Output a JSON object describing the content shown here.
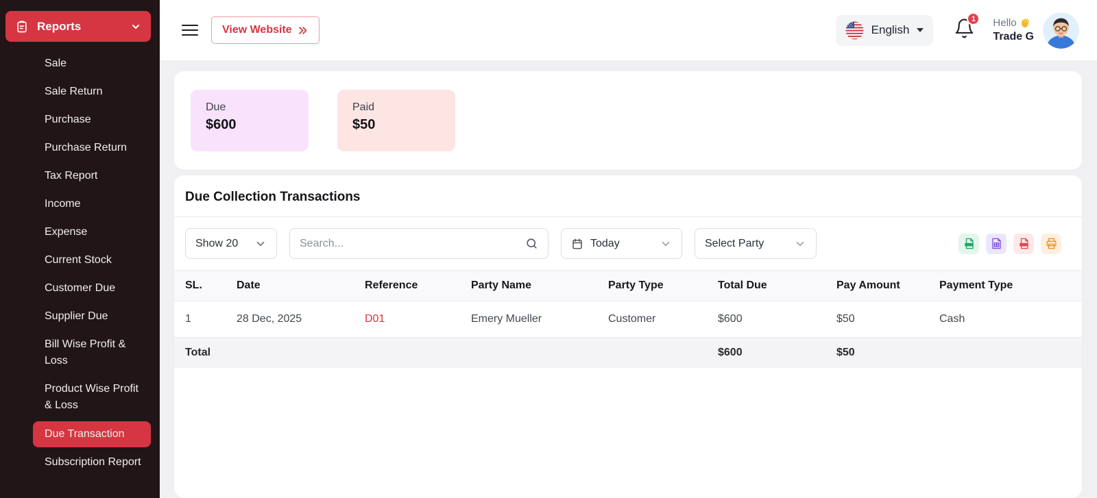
{
  "colors": {
    "accent_red": "#d63542",
    "sidebar_bg": "#211518",
    "due_card_bg": "#f8e2fc",
    "paid_card_bg": "#fde5e4"
  },
  "sidebar": {
    "header": {
      "label": "Reports",
      "icon": "clipboard-icon",
      "state_icon": "chevron-down-icon"
    },
    "items": [
      {
        "label": "Sale",
        "active": false
      },
      {
        "label": "Sale Return",
        "active": false
      },
      {
        "label": "Purchase",
        "active": false
      },
      {
        "label": "Purchase Return",
        "active": false
      },
      {
        "label": "Tax Report",
        "active": false
      },
      {
        "label": "Income",
        "active": false
      },
      {
        "label": "Expense",
        "active": false
      },
      {
        "label": "Current Stock",
        "active": false
      },
      {
        "label": "Customer Due",
        "active": false
      },
      {
        "label": "Supplier Due",
        "active": false
      },
      {
        "label": "Bill Wise Profit & Loss",
        "active": false
      },
      {
        "label": "Product Wise Profit & Loss",
        "active": false
      },
      {
        "label": "Due Transaction",
        "active": true
      },
      {
        "label": "Subscription Report",
        "active": false
      }
    ]
  },
  "topbar": {
    "view_website_label": "View Website",
    "language": "English",
    "notification_count": "1",
    "greeting": "Hello",
    "greeting_icon": "waving-hand-icon",
    "username": "Trade G"
  },
  "summary_cards": [
    {
      "label": "Due",
      "value": "$600",
      "bg": "#f8e2fc"
    },
    {
      "label": "Paid",
      "value": "$50",
      "bg": "#fde5e4"
    }
  ],
  "panel": {
    "title": "Due Collection Transactions",
    "filters": {
      "show_label": "Show 20",
      "search_placeholder": "Search...",
      "date_filter": "Today",
      "party_filter": "Select Party"
    },
    "export_icons": [
      "csv-export-icon",
      "spreadsheet-export-icon",
      "pdf-export-icon",
      "print-icon"
    ],
    "table": {
      "columns": [
        "SL.",
        "Date",
        "Reference",
        "Party Name",
        "Party Type",
        "Total Due",
        "Pay Amount",
        "Payment Type"
      ],
      "rows": [
        [
          "1",
          "28 Dec, 2025",
          "D01",
          "Emery Mueller",
          "Customer",
          "$600",
          "$50",
          "Cash"
        ]
      ],
      "total_row": {
        "label": "Total",
        "total_due": "$600",
        "pay_amount": "$50"
      }
    }
  }
}
